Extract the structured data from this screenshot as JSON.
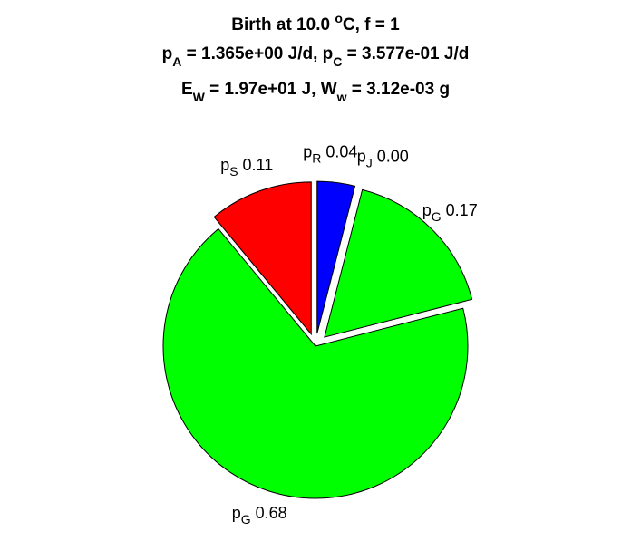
{
  "chart_data": {
    "type": "pie",
    "title": {
      "line1": "Birth at 10.0 ",
      "line1_sup": "o",
      "line1_rest": "C, f = 1",
      "line2_a_base": "p",
      "line2_a_sub": "A",
      "line2_a_val": " = 1.365e+00 J/d, ",
      "line2_c_base": "p",
      "line2_c_sub": "C",
      "line2_c_val": " = 3.577e-01 J/d",
      "line3_e_base": "E",
      "line3_e_sub": "W",
      "line3_e_val": " = 1.97e+01 J, ",
      "line3_w_base": "W",
      "line3_w_sub": "w",
      "line3_w_val": " = 3.12e-03 g"
    },
    "slices": [
      {
        "base": "p",
        "sub": "R",
        "value_label": "0.04",
        "value": 0.04,
        "color": "#0000ff",
        "exploded": true
      },
      {
        "base": "p",
        "sub": "J",
        "value_label": "0.00",
        "value": 0.0,
        "color": "#ffff00",
        "exploded": true
      },
      {
        "base": "p",
        "sub": "G",
        "value_label": "0.17",
        "value": 0.17,
        "color": "#00ff00",
        "exploded": true
      },
      {
        "base": "p",
        "sub": "G",
        "value_label": "0.68",
        "value": 0.68,
        "color": "#00ff00",
        "exploded": false
      },
      {
        "base": "p",
        "sub": "S",
        "value_label": "0.11",
        "value": 0.11,
        "color": "#ff0000",
        "exploded": true
      }
    ]
  }
}
